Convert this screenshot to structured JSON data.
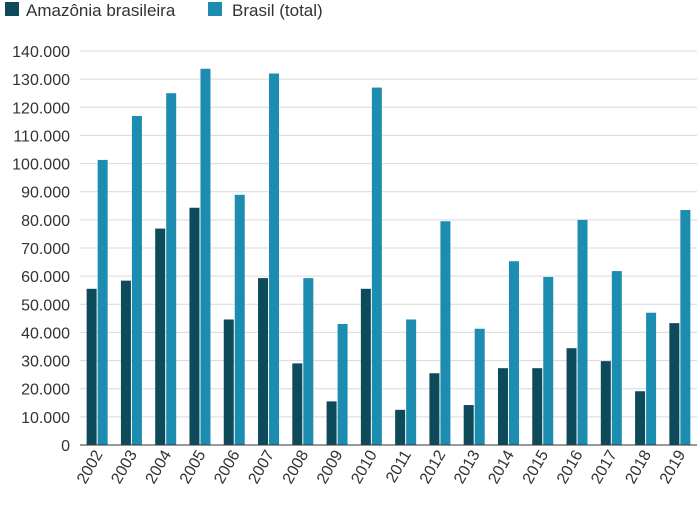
{
  "chart_data": {
    "type": "bar",
    "title": "",
    "xlabel": "",
    "ylabel": "",
    "categories": [
      "2002",
      "2003",
      "2004",
      "2005",
      "2006",
      "2007",
      "2008",
      "2009",
      "2010",
      "2011",
      "2012",
      "2013",
      "2014",
      "2015",
      "2016",
      "2017",
      "2018",
      "2019"
    ],
    "series": [
      {
        "name": "Amazônia brasileira",
        "color": "#0d4a5a",
        "values": [
          55500,
          58400,
          76900,
          84300,
          44600,
          59300,
          29000,
          15500,
          55500,
          12500,
          25500,
          14200,
          27300,
          27300,
          34400,
          29800,
          19100,
          43300
        ]
      },
      {
        "name": "Brasil (total)",
        "color": "#1c8db0",
        "values": [
          101300,
          116900,
          125000,
          133700,
          88900,
          132000,
          59300,
          43000,
          127000,
          44600,
          79500,
          41300,
          65300,
          59700,
          80000,
          61800,
          47000,
          83500
        ]
      }
    ],
    "ylim": [
      0,
      140000
    ],
    "yticks": [
      0,
      10000,
      20000,
      30000,
      40000,
      50000,
      60000,
      70000,
      80000,
      90000,
      100000,
      110000,
      120000,
      130000,
      140000
    ],
    "ytick_labels": [
      "0",
      "10.000",
      "20.000",
      "30.000",
      "40.000",
      "50.000",
      "60.000",
      "70.000",
      "80.000",
      "90.000",
      "100.000",
      "110.000",
      "120.000",
      "130.000",
      "140.000"
    ],
    "grid": true,
    "legend_position": "top-left"
  }
}
